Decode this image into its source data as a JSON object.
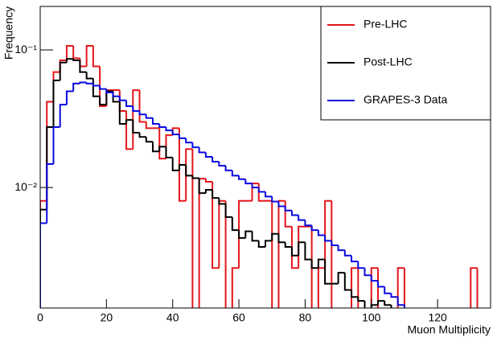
{
  "chart_data": {
    "type": "histogram",
    "x_label": "Muon Multiplicity",
    "y_label": "Frequency",
    "bins": [
      0,
      2,
      4,
      6,
      8,
      10,
      12,
      14,
      16,
      18,
      20,
      22,
      24,
      26,
      28,
      30,
      32,
      34,
      36,
      38,
      40,
      42,
      44,
      46,
      48,
      50,
      52,
      54,
      56,
      58,
      60,
      62,
      64,
      66,
      68,
      70,
      72,
      74,
      76,
      78,
      80,
      82,
      84,
      86,
      88,
      90,
      92,
      94,
      96,
      98,
      100,
      102,
      104,
      106,
      108,
      110,
      112,
      114,
      116,
      118,
      120,
      122,
      124,
      126,
      128,
      130,
      132,
      134,
      136
    ],
    "series": [
      {
        "name": "Pre-LHC",
        "color": "#e3161b",
        "values": [
          0.008,
          0.042,
          0.069,
          0.084,
          0.107,
          0.087,
          0.076,
          0.107,
          0.076,
          0.039,
          0.051,
          0.051,
          0.036,
          0.019,
          0.051,
          0.03,
          0.027,
          0.027,
          0.0162,
          0.024,
          0.027,
          0.008,
          0.019,
          0,
          0.0116,
          0.011,
          0.0026,
          0.008,
          0,
          0.0026,
          0.008,
          0.008,
          0.0107,
          0.008,
          0.008,
          0,
          0.008,
          0.0052,
          0.0026,
          0.0052,
          0.0052,
          0,
          0.0026,
          0.008,
          0,
          0,
          0,
          0.0026,
          0,
          0,
          0.0026,
          0,
          0,
          0,
          0.0026,
          0,
          0,
          0,
          0,
          0,
          0,
          0,
          0,
          0,
          0,
          0.0026,
          0,
          0
        ]
      },
      {
        "name": "Post-LHC",
        "color": "#000000",
        "values": [
          0.0069,
          0.0275,
          0.06,
          0.081,
          0.086,
          0.084,
          0.069,
          0.062,
          0.046,
          0.04,
          0.05,
          0.042,
          0.029,
          0.031,
          0.025,
          0.0233,
          0.0215,
          0.0183,
          0.0198,
          0.0165,
          0.0133,
          0.0146,
          0.0122,
          0.0117,
          0.0091,
          0.0096,
          0.0084,
          0.0076,
          0.0061,
          0.0049,
          0.0043,
          0.0048,
          0.0041,
          0.0037,
          0.0041,
          0.0046,
          0.004,
          0.0037,
          0.0032,
          0.004,
          0.003,
          0.0026,
          0.003,
          0.002,
          0.002,
          0.0024,
          0.0018,
          0.0016,
          0.0015,
          0.0012,
          0.0014,
          0.0015,
          0.0014,
          0.0012,
          0,
          0,
          0,
          0,
          0,
          0,
          0,
          0,
          0,
          0,
          0,
          0,
          0,
          0
        ]
      },
      {
        "name": "GRAPES-3 Data",
        "color": "#0a0ae0",
        "values": [
          0.0055,
          0.0148,
          0.0275,
          0.04,
          0.05,
          0.057,
          0.058,
          0.057,
          0.055,
          0.052,
          0.049,
          0.046,
          0.043,
          0.039,
          0.036,
          0.034,
          0.032,
          0.029,
          0.0275,
          0.026,
          0.0243,
          0.0228,
          0.0212,
          0.0196,
          0.018,
          0.0167,
          0.0154,
          0.0144,
          0.0133,
          0.0122,
          0.0115,
          0.0107,
          0.01,
          0.0093,
          0.0086,
          0.0079,
          0.0073,
          0.0068,
          0.0063,
          0.0058,
          0.0053,
          0.0049,
          0.0045,
          0.0041,
          0.0038,
          0.0035,
          0.0032,
          0.0029,
          0.0026,
          0.0023,
          0.0021,
          0.0019,
          0.0017,
          0.0016,
          0.0014,
          0.0012,
          0.0012,
          0.0012,
          0.0012,
          0,
          0,
          0,
          0,
          0,
          0,
          0,
          0,
          0
        ]
      }
    ],
    "xlim": [
      0,
      136
    ],
    "xticks": [
      0,
      20,
      40,
      60,
      80,
      100,
      120
    ],
    "ylim": [
      0.00133,
      0.207
    ],
    "yscale": "log",
    "yticks": [
      {
        "value": 0.01,
        "label": "10⁻²"
      },
      {
        "value": 0.1,
        "label": "10⁻¹"
      }
    ],
    "legend": "top-right"
  }
}
